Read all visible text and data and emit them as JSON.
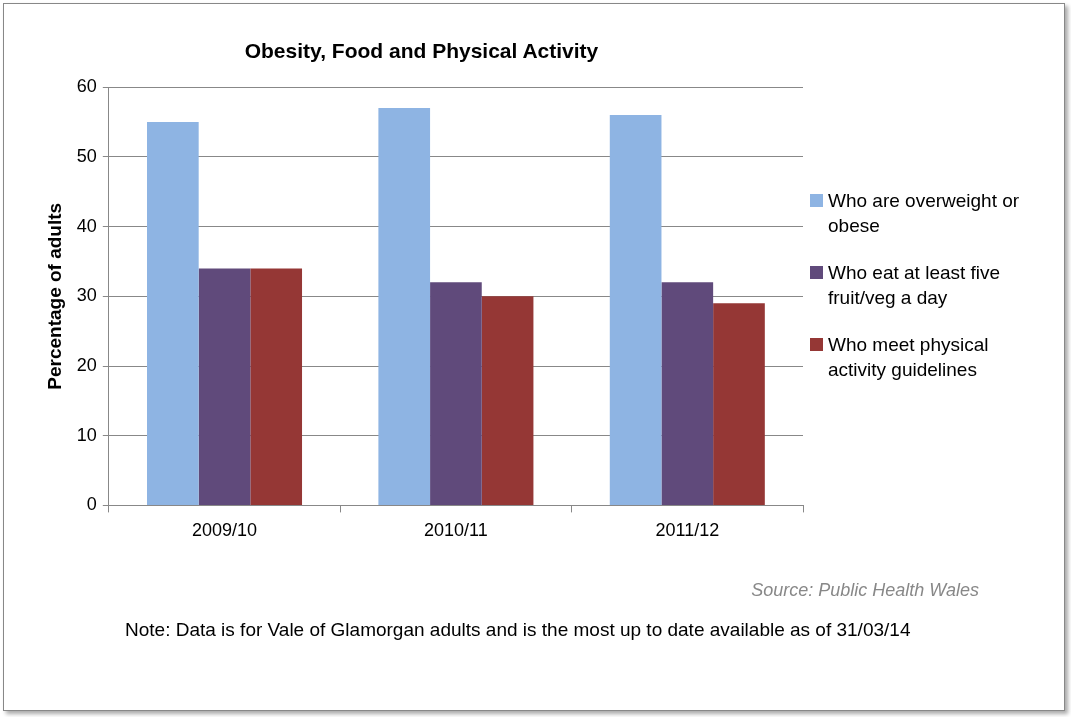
{
  "chart_data": {
    "type": "bar",
    "title": "Obesity, Food and Physical Activity",
    "ylabel": "Percentage of adults",
    "categories": [
      "2009/10",
      "2010/11",
      "2011/12"
    ],
    "series": [
      {
        "name": "Who are overweight or obese",
        "color": "#8eb4e3",
        "values": [
          55,
          57,
          56
        ]
      },
      {
        "name": "Who eat at least five fruit/veg a day",
        "color": "#604a7b",
        "values": [
          34,
          32,
          32
        ]
      },
      {
        "name": "Who meet physical activity guidelines",
        "color": "#953735",
        "values": [
          34,
          30,
          29
        ]
      }
    ],
    "ylim": [
      0,
      60
    ],
    "yticks": [
      0,
      10,
      20,
      30,
      40,
      50,
      60
    ],
    "grid": "y",
    "legend": "right",
    "annotations": [
      "Source: Public Health Wales",
      "Note: Data is for Vale of Glamorgan adults and is the most up to date available as of 31/03/14"
    ]
  }
}
